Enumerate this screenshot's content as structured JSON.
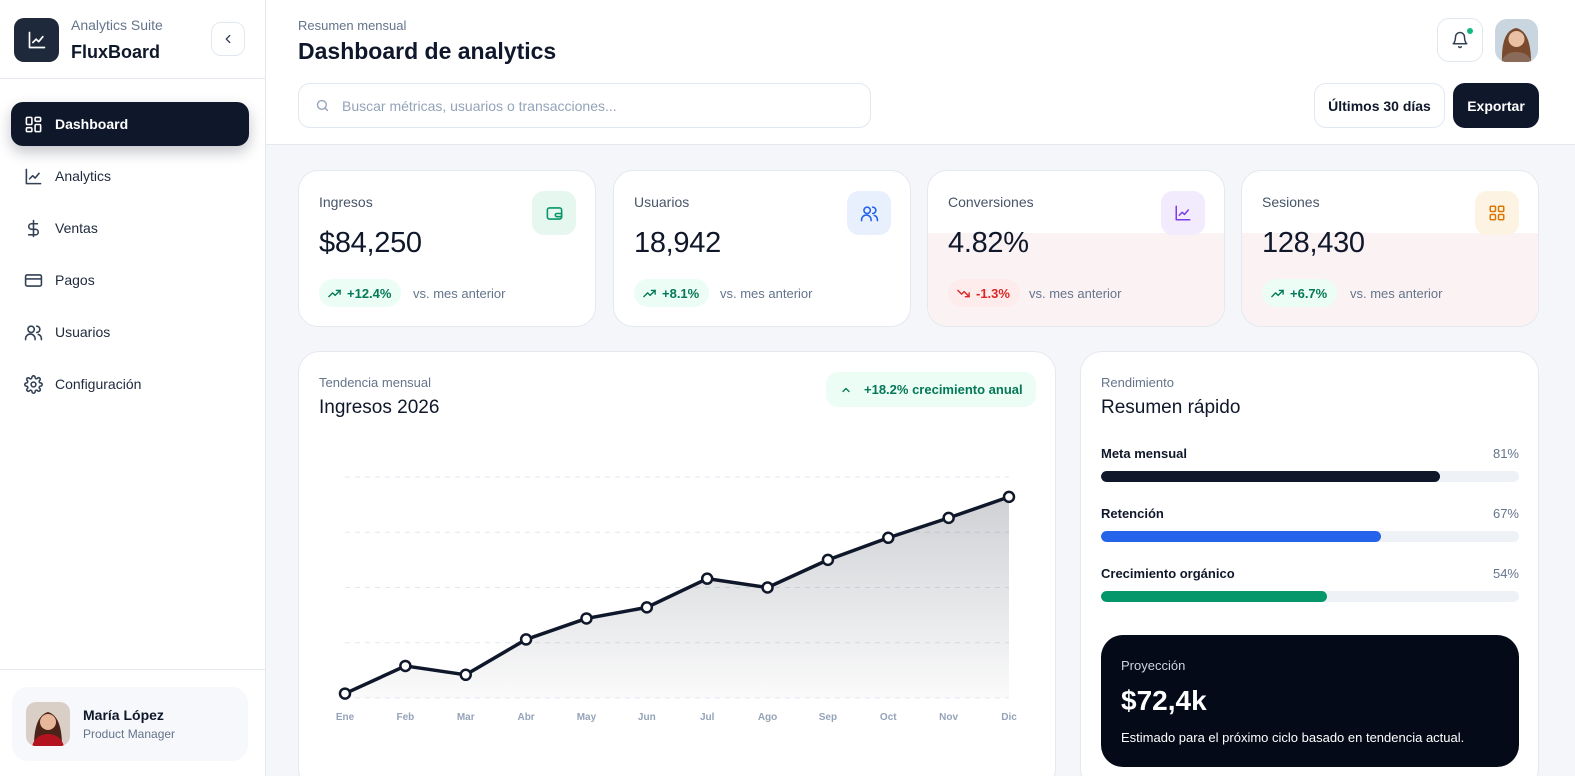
{
  "brand": {
    "subtitle": "Analytics Suite",
    "title": "FluxBoard",
    "logo_icon": "line-chart-icon"
  },
  "sidebar": {
    "items": [
      {
        "label": "Dashboard",
        "icon": "grid-icon",
        "active": true
      },
      {
        "label": "Analytics",
        "icon": "line-chart-icon",
        "active": false
      },
      {
        "label": "Ventas",
        "icon": "dollar-icon",
        "active": false
      },
      {
        "label": "Pagos",
        "icon": "credit-card-icon",
        "active": false
      },
      {
        "label": "Usuarios",
        "icon": "users-icon",
        "active": false
      },
      {
        "label": "Configuración",
        "icon": "gear-icon",
        "active": false
      }
    ],
    "user": {
      "name": "María López",
      "role": "Product Manager"
    }
  },
  "header": {
    "subtitle": "Resumen mensual",
    "title": "Dashboard de analytics",
    "search_placeholder": "Buscar métricas, usuarios o transacciones...",
    "range_label": "Últimos 30 días",
    "export_label": "Exportar",
    "notification_dot_color": "#10b981"
  },
  "kpis": [
    {
      "label": "Ingresos",
      "value": "$84,250",
      "change": "+12.4%",
      "direction": "up",
      "compare": "vs. mes anterior",
      "icon": "wallet-icon",
      "icon_bg": "#e6f7f0",
      "icon_color": "#059669"
    },
    {
      "label": "Usuarios",
      "value": "18,942",
      "change": "+8.1%",
      "direction": "up",
      "compare": "vs. mes anterior",
      "icon": "users-icon",
      "icon_bg": "#e8f0fe",
      "icon_color": "#2563eb"
    },
    {
      "label": "Conversiones",
      "value": "4.82%",
      "change": "-1.3%",
      "direction": "down",
      "compare": "vs. mes anterior",
      "icon": "line-chart-icon",
      "icon_bg": "#f1ebfd",
      "icon_color": "#7c3aed"
    },
    {
      "label": "Sesiones",
      "value": "128,430",
      "change": "+6.7%",
      "direction": "up",
      "compare": "vs. mes anterior",
      "icon": "grid-icon",
      "icon_bg": "#fdf3e2",
      "icon_color": "#d97706"
    }
  ],
  "trend": {
    "subtitle": "Tendencia mensual",
    "title": "Ingresos 2026",
    "growth_label": "+18.2% crecimiento anual"
  },
  "chart_data": {
    "type": "area",
    "title": "Ingresos 2026",
    "categories": [
      "Ene",
      "Feb",
      "Mar",
      "Abr",
      "May",
      "Jun",
      "Jul",
      "Ago",
      "Sep",
      "Oct",
      "Nov",
      "Dic"
    ],
    "series": [
      {
        "values": [
          4,
          29,
          21,
          53,
          72,
          82,
          108,
          100,
          125,
          145,
          163,
          182
        ]
      }
    ],
    "ylim": [
      0,
      200
    ],
    "grid": true,
    "legend": "none",
    "line_color": "#0f172a"
  },
  "summary": {
    "subtitle": "Rendimiento",
    "title": "Resumen rápido",
    "metrics": [
      {
        "name": "Meta mensual",
        "percent_label": "81%",
        "value": 81,
        "color": "#0f172a"
      },
      {
        "name": "Retención",
        "percent_label": "67%",
        "value": 67,
        "color": "#2563eb"
      },
      {
        "name": "Crecimiento orgánico",
        "percent_label": "54%",
        "value": 54,
        "color": "#059669"
      }
    ],
    "projection": {
      "label": "Proyección",
      "value": "$72,4k",
      "note": "Estimado para el próximo ciclo basado en tendencia actual."
    }
  }
}
